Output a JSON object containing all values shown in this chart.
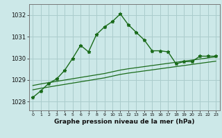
{
  "title": "Graphe pression niveau de la mer (hPa)",
  "background_color": "#cce8e8",
  "grid_color": "#aacccc",
  "line_color": "#1a6b1a",
  "x_labels": [
    "0",
    "1",
    "2",
    "3",
    "4",
    "5",
    "6",
    "7",
    "8",
    "9",
    "10",
    "11",
    "12",
    "13",
    "14",
    "15",
    "16",
    "17",
    "18",
    "19",
    "20",
    "21",
    "22",
    "23"
  ],
  "ylim": [
    1027.6,
    1032.5
  ],
  "yticks": [
    1028,
    1029,
    1030,
    1031,
    1032
  ],
  "main_series": [
    1028.2,
    1028.5,
    1028.85,
    1029.05,
    1029.45,
    1030.0,
    1030.6,
    1030.3,
    1031.1,
    1031.45,
    1031.7,
    1032.05,
    1031.55,
    1031.2,
    1030.85,
    1030.35,
    1030.35,
    1030.3,
    1029.75,
    1029.85,
    1029.85,
    1030.1,
    1030.1,
    1030.1
  ],
  "trend_line1": [
    1028.75,
    1028.82,
    1028.88,
    1028.94,
    1029.0,
    1029.06,
    1029.12,
    1029.18,
    1029.24,
    1029.3,
    1029.38,
    1029.46,
    1029.52,
    1029.57,
    1029.62,
    1029.67,
    1029.72,
    1029.77,
    1029.82,
    1029.87,
    1029.92,
    1029.97,
    1030.02,
    1030.07
  ],
  "trend_line2": [
    1028.55,
    1028.62,
    1028.68,
    1028.74,
    1028.8,
    1028.86,
    1028.92,
    1028.98,
    1029.04,
    1029.1,
    1029.18,
    1029.26,
    1029.32,
    1029.37,
    1029.42,
    1029.47,
    1029.52,
    1029.57,
    1029.62,
    1029.67,
    1029.72,
    1029.77,
    1029.82,
    1029.87
  ],
  "ylabel_fontsize": 6,
  "xlabel_fontsize": 6.5,
  "xtick_fontsize": 4.5,
  "title_fontweight": "bold"
}
